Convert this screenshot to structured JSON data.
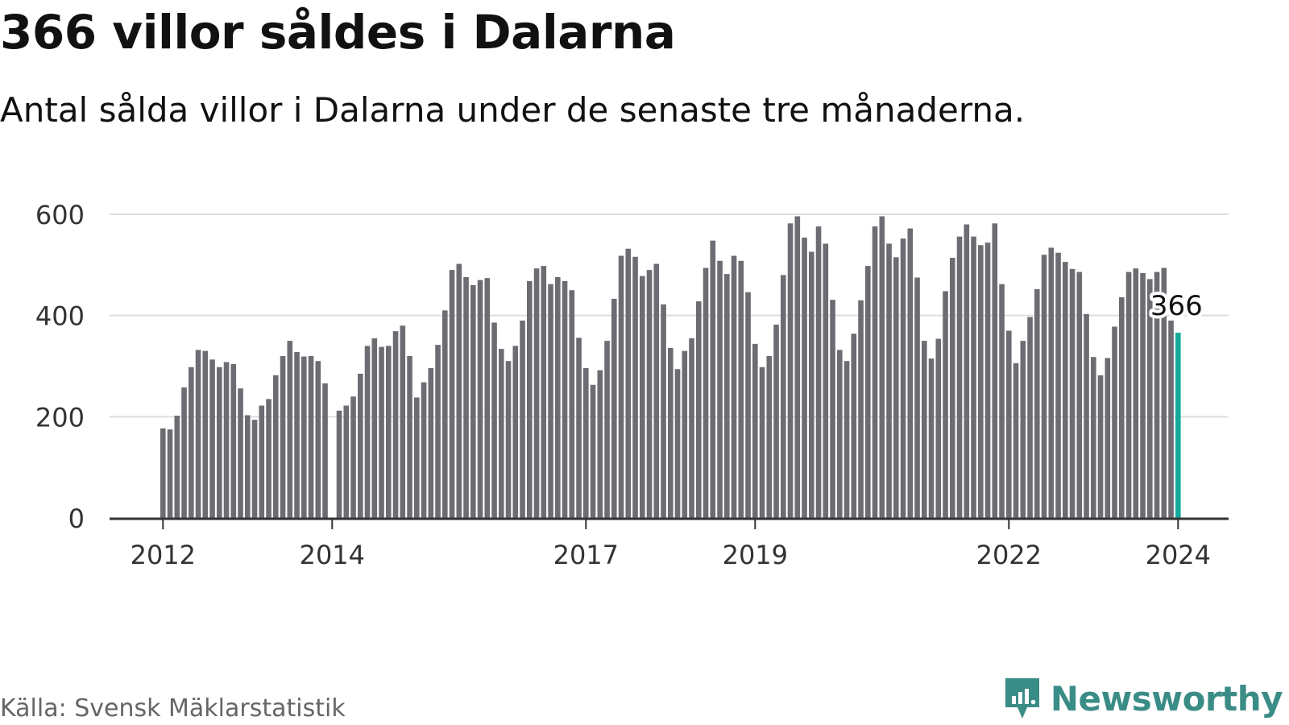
{
  "title": "366 villor såldes i Dalarna",
  "subtitle": "Antal sålda villor i Dalarna under de senaste tre månaderna.",
  "source": "Källa: Svensk Mäklarstatistik",
  "brand": {
    "name": "Newsworthy",
    "icon": "newsworthy-logo-icon"
  },
  "colors": {
    "bar": "#6d6c72",
    "highlight": "#14a99b",
    "grid": "#dddddd",
    "axis": "#333333",
    "brand": "#3a8c86"
  },
  "chart_data": {
    "type": "bar",
    "title": "366 villor såldes i Dalarna",
    "xlabel": "",
    "ylabel": "",
    "ylim": [
      0,
      600
    ],
    "yticks": [
      0,
      200,
      400,
      600
    ],
    "xticks": [
      {
        "label": "2012",
        "index": 0
      },
      {
        "label": "2014",
        "index": 24
      },
      {
        "label": "2017",
        "index": 60
      },
      {
        "label": "2019",
        "index": 84
      },
      {
        "label": "2022",
        "index": 120
      },
      {
        "label": "2024",
        "index": 144
      }
    ],
    "highlight": {
      "index": 144,
      "label": "366"
    },
    "values": [
      177,
      175,
      202,
      258,
      298,
      332,
      330,
      313,
      298,
      308,
      304,
      256,
      203,
      194,
      222,
      235,
      282,
      320,
      350,
      328,
      319,
      320,
      310,
      266,
      0,
      212,
      222,
      240,
      285,
      340,
      355,
      338,
      340,
      369,
      380,
      320,
      238,
      268,
      296,
      342,
      410,
      490,
      502,
      476,
      460,
      470,
      474,
      386,
      334,
      310,
      340,
      390,
      468,
      493,
      498,
      462,
      476,
      468,
      450,
      356,
      296,
      263,
      292,
      350,
      433,
      518,
      532,
      516,
      478,
      490,
      502,
      422,
      336,
      294,
      330,
      355,
      428,
      494,
      548,
      508,
      482,
      518,
      508,
      446,
      344,
      298,
      320,
      382,
      480,
      582,
      596,
      554,
      526,
      576,
      542,
      431,
      332,
      310,
      364,
      430,
      498,
      576,
      596,
      542,
      515,
      552,
      572,
      475,
      350,
      315,
      354,
      448,
      514,
      556,
      580,
      556,
      539,
      544,
      582,
      462,
      370,
      306,
      350,
      397,
      452,
      520,
      534,
      524,
      506,
      492,
      486,
      403,
      318,
      282,
      316,
      378,
      436,
      486,
      493,
      484,
      472,
      486,
      494,
      390,
      366
    ]
  }
}
